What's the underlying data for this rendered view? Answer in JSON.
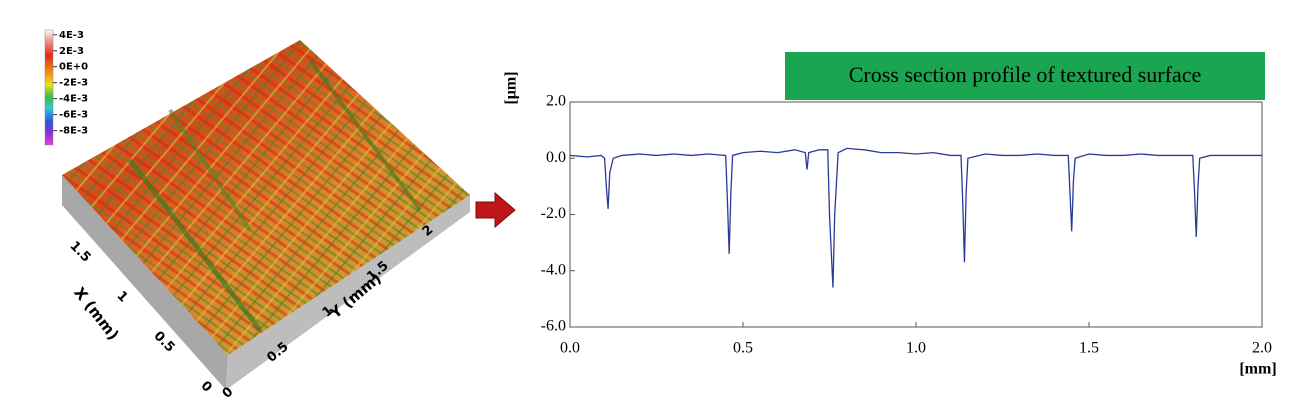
{
  "chart_data": [
    {
      "type": "surface",
      "xlabel": "X (mm)",
      "ylabel": "Y (mm)",
      "xlim": [
        0,
        2
      ],
      "xticks": [
        0,
        0.5,
        1,
        1.5
      ],
      "ylim": [
        0,
        2.5
      ],
      "yticks": [
        0,
        0.5,
        1,
        1.5,
        2
      ],
      "zlim": [
        -0.0098,
        0.0046
      ],
      "zticks": [
        {
          "value": 0.004,
          "label": "4E-3"
        },
        {
          "value": 0.002,
          "label": "2E-3"
        },
        {
          "value": 0,
          "label": "0E+0"
        },
        {
          "value": -0.002,
          "label": "-2E-3"
        },
        {
          "value": -0.004,
          "label": "-4E-3"
        },
        {
          "value": -0.006,
          "label": "-6E-3"
        },
        {
          "value": -0.008,
          "label": "-8E-3"
        }
      ]
    },
    {
      "type": "line",
      "title": "Cross section profile of textured surface",
      "xlabel": "[mm]",
      "ylabel": "[μm]",
      "color": "#2b3a9a",
      "xlim": [
        0,
        2
      ],
      "ylim": [
        -6,
        2
      ],
      "xticks": [
        {
          "value": 0,
          "label": "0.0"
        },
        0.5,
        {
          "value": 1,
          "label": "1.0"
        },
        1.5,
        {
          "value": 2,
          "label": "2.0"
        }
      ],
      "yticks": [
        {
          "value": 2,
          "label": "2.0"
        },
        {
          "value": 0,
          "label": "0.0"
        },
        {
          "value": -2,
          "label": "-2.0"
        },
        {
          "value": -4,
          "label": "-4.0"
        },
        {
          "value": -6,
          "label": "-6.0"
        }
      ],
      "grid": false,
      "x": [
        0,
        0.05,
        0.09,
        0.1,
        0.105,
        0.11,
        0.115,
        0.125,
        0.15,
        0.2,
        0.25,
        0.3,
        0.35,
        0.4,
        0.45,
        0.455,
        0.46,
        0.465,
        0.47,
        0.5,
        0.55,
        0.6,
        0.65,
        0.68,
        0.685,
        0.69,
        0.72,
        0.745,
        0.75,
        0.76,
        0.765,
        0.775,
        0.8,
        0.85,
        0.9,
        0.95,
        1.0,
        1.05,
        1.1,
        1.13,
        1.135,
        1.14,
        1.145,
        1.15,
        1.2,
        1.25,
        1.3,
        1.35,
        1.4,
        1.44,
        1.445,
        1.45,
        1.455,
        1.46,
        1.5,
        1.55,
        1.6,
        1.65,
        1.7,
        1.75,
        1.8,
        1.805,
        1.81,
        1.815,
        1.82,
        1.85,
        1.9,
        1.95,
        2.0
      ],
      "values": [
        0.1,
        0.05,
        0.1,
        0.0,
        -1.0,
        -1.8,
        -0.5,
        0.0,
        0.1,
        0.15,
        0.1,
        0.15,
        0.1,
        0.15,
        0.1,
        -1.5,
        -3.4,
        -1.2,
        0.1,
        0.2,
        0.25,
        0.2,
        0.3,
        0.2,
        -0.4,
        0.2,
        0.3,
        0.3,
        -2.0,
        -4.6,
        -2.0,
        0.2,
        0.35,
        0.3,
        0.2,
        0.2,
        0.15,
        0.2,
        0.1,
        0.1,
        -1.5,
        -3.7,
        -1.2,
        0.0,
        0.15,
        0.1,
        0.1,
        0.15,
        0.1,
        0.1,
        -1.2,
        -2.6,
        -0.8,
        0.0,
        0.15,
        0.1,
        0.1,
        0.15,
        0.1,
        0.1,
        0.1,
        -1.2,
        -2.8,
        -1.0,
        0.0,
        0.1,
        0.1,
        0.1,
        0.1
      ]
    }
  ]
}
